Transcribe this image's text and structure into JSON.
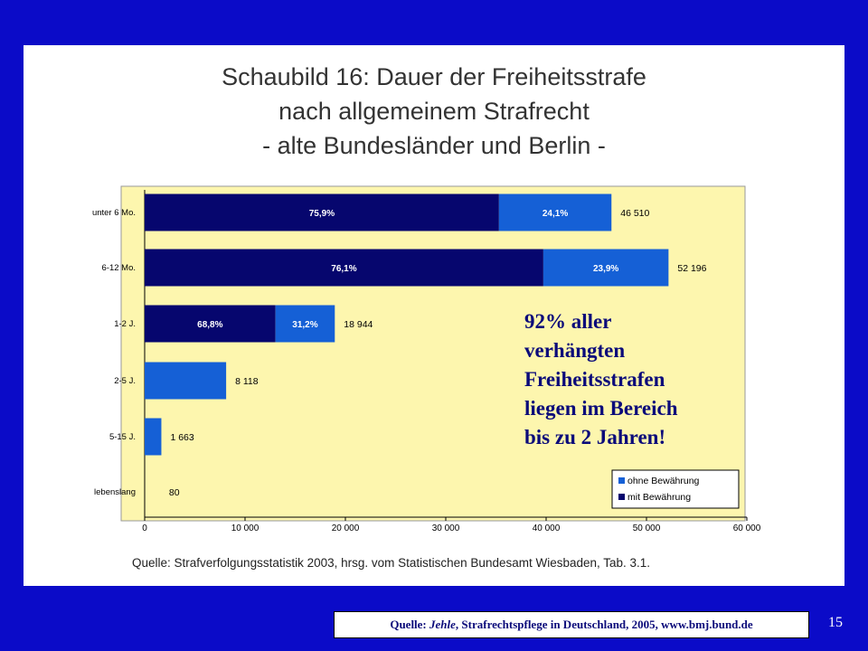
{
  "slide": {
    "title_lines": [
      "Schaubild 16: Dauer der Freiheitsstrafe",
      "nach allgemeinem Strafrecht",
      "- alte Bundesländer und Berlin -"
    ],
    "source": "Quelle: Strafverfolgungsstatistik 2003, hrsg. vom Statistischen Bundesamt Wiesbaden, Tab. 3.1.",
    "callout_lines": [
      "92% aller",
      "verhängten",
      "Freiheitsstrafen",
      "liegen im Bereich",
      "bis zu 2 Jahren!"
    ],
    "footer": {
      "prefix": "Quelle: ",
      "author": "Jehle",
      "rest": ", Strafrechtspflege in Deutschland, 2005, www.bmj.bund.de"
    },
    "page_number": "15"
  },
  "colors": {
    "background": "#0b0bc8",
    "plot_background": "#fdf6ae",
    "mit_bewaehrung": "#06066e",
    "ohne_bewaehrung": "#1560d6"
  },
  "chart_data": {
    "type": "bar",
    "orientation": "horizontal",
    "stacked": true,
    "categories": [
      "unter 6 Mo.",
      "6-12 Mo.",
      "1-2 J.",
      "2-5 J.",
      "5-15 J.",
      "lebenslang"
    ],
    "totals": [
      46510,
      52196,
      18944,
      8118,
      1663,
      80
    ],
    "total_labels": [
      "46 510",
      "52 196",
      "18 944",
      "8 118",
      "1 663",
      "80"
    ],
    "series": [
      {
        "name": "mit Bewährung",
        "percent_labels": [
          "75,9%",
          "76,1%",
          "68,8%",
          "",
          "",
          ""
        ],
        "share": [
          0.759,
          0.761,
          0.688,
          0,
          0,
          0
        ]
      },
      {
        "name": "ohne Bewährung",
        "percent_labels": [
          "24,1%",
          "23,9%",
          "31,2%",
          "",
          "",
          ""
        ],
        "share": [
          0.241,
          0.239,
          0.312,
          1,
          1,
          1
        ]
      }
    ],
    "xlim": [
      0,
      60000
    ],
    "x_ticks": [
      0,
      10000,
      20000,
      30000,
      40000,
      50000,
      60000
    ],
    "x_tick_labels": [
      "0",
      "10 000",
      "20 000",
      "30 000",
      "40 000",
      "50 000",
      "60 000"
    ],
    "legend": [
      "ohne Bewährung",
      "mit Bewährung"
    ],
    "legend_position": "bottom-right",
    "grid": false
  }
}
